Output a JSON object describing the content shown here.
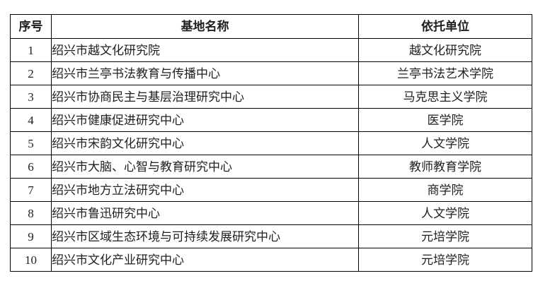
{
  "table": {
    "columns": [
      "序号",
      "基地名称",
      "依托单位"
    ],
    "rows": [
      {
        "no": "1",
        "base": "绍兴市越文化研究院",
        "unit": "越文化研究院"
      },
      {
        "no": "2",
        "base": "绍兴市兰亭书法教育与传播中心",
        "unit": "兰亭书法艺术学院"
      },
      {
        "no": "3",
        "base": "绍兴市协商民主与基层治理研究中心",
        "unit": "马克思主义学院"
      },
      {
        "no": "4",
        "base": "绍兴市健康促进研究中心",
        "unit": "医学院"
      },
      {
        "no": "5",
        "base": "绍兴市宋韵文化研究中心",
        "unit": "人文学院"
      },
      {
        "no": "6",
        "base": "绍兴市大脑、心智与教育研究中心",
        "unit": "教师教育学院"
      },
      {
        "no": "7",
        "base": "绍兴市地方立法研究中心",
        "unit": "商学院"
      },
      {
        "no": "8",
        "base": "绍兴市鲁迅研究中心",
        "unit": "人文学院"
      },
      {
        "no": "9",
        "base": "绍兴市区域生态环境与可持续发展研究中心",
        "unit": "元培学院"
      },
      {
        "no": "10",
        "base": "绍兴市文化产业研究中心",
        "unit": "元培学院"
      }
    ],
    "colors": {
      "border": "#000000",
      "text": "#1f1f1f",
      "background": "#ffffff"
    }
  }
}
